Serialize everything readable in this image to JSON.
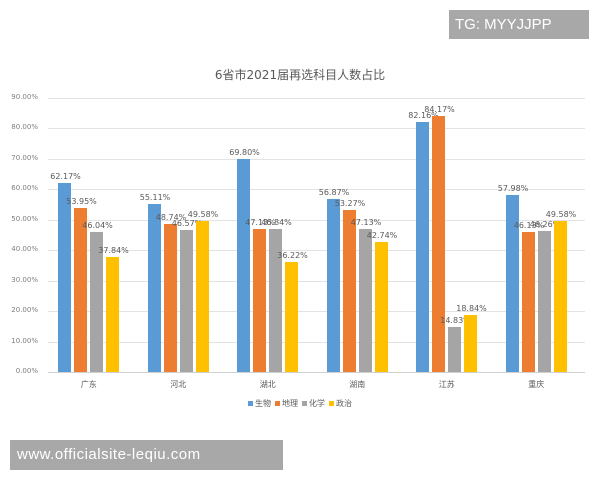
{
  "watermarks": {
    "top": "TG: MYYJJPP",
    "bottom": "www.officialsite-leqiu.com"
  },
  "chart_data": {
    "type": "bar",
    "title": "6省市2021届再选科目人数占比",
    "xlabel": "",
    "ylabel": "",
    "ylim": [
      0,
      90
    ],
    "yticks": [
      "0.00%",
      "10.00%",
      "20.00%",
      "30.00%",
      "40.00%",
      "50.00%",
      "60.00%",
      "70.00%",
      "80.00%",
      "90.00%"
    ],
    "grid": true,
    "legend_position": "bottom",
    "categories": [
      "广东",
      "河北",
      "湖北",
      "湖南",
      "江苏",
      "重庆"
    ],
    "series": [
      {
        "name": "生物",
        "color": "#5b9bd5",
        "values": [
          62.17,
          55.11,
          69.8,
          56.87,
          82.16,
          57.98
        ],
        "labels": [
          "62.17%",
          "55.11%",
          "69.80%",
          "56.87%",
          "82.16%",
          "57.98%"
        ]
      },
      {
        "name": "地理",
        "color": "#ed7d31",
        "values": [
          53.95,
          48.74,
          47.13,
          53.27,
          84.17,
          46.13
        ],
        "labels": [
          "53.95%",
          "48.74%",
          "47.13%",
          "53.27%",
          "84.17%",
          "46.13%"
        ]
      },
      {
        "name": "化学",
        "color": "#a5a5a5",
        "values": [
          46.04,
          46.57,
          46.84,
          47.13,
          14.83,
          46.26
        ],
        "labels": [
          "46.04%",
          "46.57%",
          "46.84%",
          "47.13%",
          "14.83%",
          "46.26%"
        ]
      },
      {
        "name": "政治",
        "color": "#ffc000",
        "values": [
          37.84,
          49.58,
          36.22,
          42.74,
          18.84,
          49.58
        ],
        "labels": [
          "37.84%",
          "49.58%",
          "36.22%",
          "42.74%",
          "18.84%",
          "49.58%"
        ]
      }
    ]
  }
}
